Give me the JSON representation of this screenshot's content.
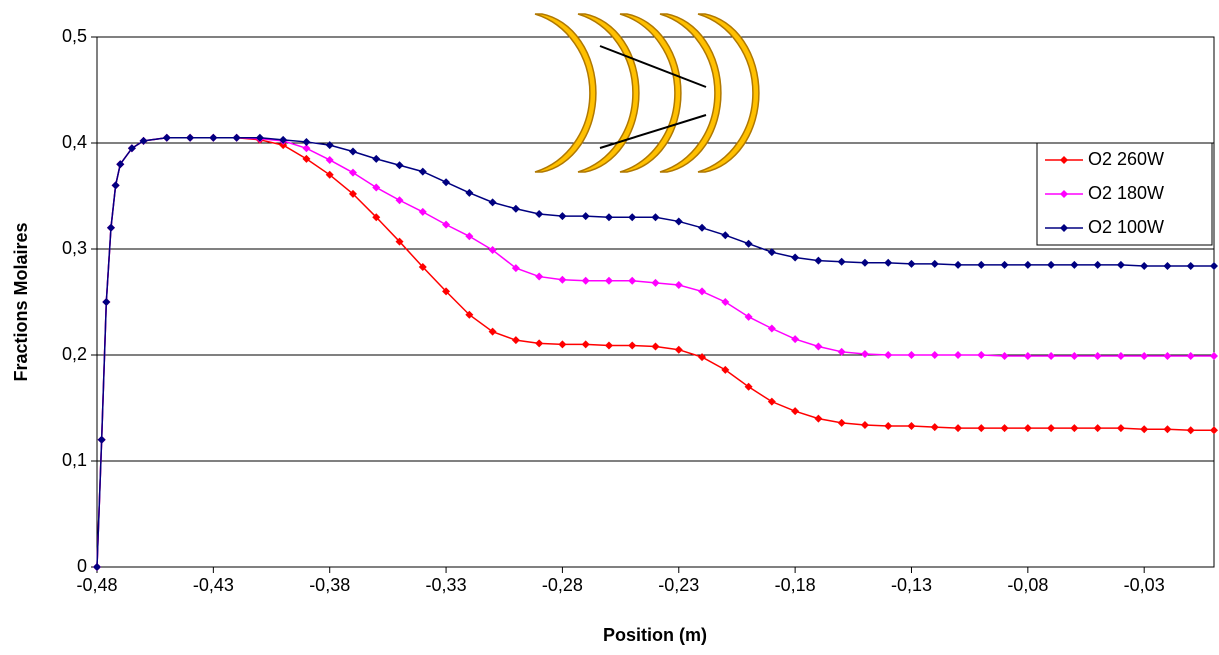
{
  "chart_data": {
    "type": "line",
    "xlabel": "Position (m)",
    "ylabel": "Fractions Molaires",
    "x": [
      -0.48,
      -0.478,
      -0.476,
      -0.474,
      -0.472,
      -0.47,
      -0.465,
      -0.46,
      -0.45,
      -0.44,
      -0.43,
      -0.42,
      -0.41,
      -0.4,
      -0.39,
      -0.38,
      -0.37,
      -0.36,
      -0.35,
      -0.34,
      -0.33,
      -0.32,
      -0.31,
      -0.3,
      -0.29,
      -0.28,
      -0.27,
      -0.26,
      -0.25,
      -0.24,
      -0.23,
      -0.22,
      -0.21,
      -0.2,
      -0.19,
      -0.18,
      -0.17,
      -0.16,
      -0.15,
      -0.14,
      -0.13,
      -0.12,
      -0.11,
      -0.1,
      -0.09,
      -0.08,
      -0.07,
      -0.06,
      -0.05,
      -0.04,
      -0.03,
      -0.02,
      -0.01,
      0
    ],
    "series": [
      {
        "name": "O2 260W",
        "color": "#ff0000",
        "values": [
          0,
          0.12,
          0.25,
          0.32,
          0.36,
          0.38,
          0.395,
          0.402,
          0.405,
          0.405,
          0.405,
          0.405,
          0.403,
          0.398,
          0.385,
          0.37,
          0.352,
          0.33,
          0.307,
          0.283,
          0.26,
          0.238,
          0.222,
          0.214,
          0.211,
          0.21,
          0.21,
          0.209,
          0.209,
          0.208,
          0.205,
          0.198,
          0.186,
          0.17,
          0.156,
          0.147,
          0.14,
          0.136,
          0.134,
          0.133,
          0.133,
          0.132,
          0.131,
          0.131,
          0.131,
          0.131,
          0.131,
          0.131,
          0.131,
          0.131,
          0.13,
          0.13,
          0.129,
          0.129
        ]
      },
      {
        "name": "O2 180W",
        "color": "#ff00ff",
        "values": [
          0,
          0.12,
          0.25,
          0.32,
          0.36,
          0.38,
          0.395,
          0.402,
          0.405,
          0.405,
          0.405,
          0.405,
          0.404,
          0.402,
          0.395,
          0.384,
          0.372,
          0.358,
          0.346,
          0.335,
          0.323,
          0.312,
          0.299,
          0.282,
          0.274,
          0.271,
          0.27,
          0.27,
          0.27,
          0.268,
          0.266,
          0.26,
          0.25,
          0.236,
          0.225,
          0.215,
          0.208,
          0.203,
          0.201,
          0.2,
          0.2,
          0.2,
          0.2,
          0.2,
          0.199,
          0.199,
          0.199,
          0.199,
          0.199,
          0.199,
          0.199,
          0.199,
          0.199,
          0.199
        ]
      },
      {
        "name": "O2 100W",
        "color": "#000080",
        "values": [
          0,
          0.12,
          0.25,
          0.32,
          0.36,
          0.38,
          0.395,
          0.402,
          0.405,
          0.405,
          0.405,
          0.405,
          0.405,
          0.403,
          0.401,
          0.398,
          0.392,
          0.385,
          0.379,
          0.373,
          0.363,
          0.353,
          0.344,
          0.338,
          0.333,
          0.331,
          0.331,
          0.33,
          0.33,
          0.33,
          0.326,
          0.32,
          0.313,
          0.305,
          0.297,
          0.292,
          0.289,
          0.288,
          0.287,
          0.287,
          0.286,
          0.286,
          0.285,
          0.285,
          0.285,
          0.285,
          0.285,
          0.285,
          0.285,
          0.285,
          0.284,
          0.284,
          0.284,
          0.284
        ]
      }
    ],
    "xlim": [
      -0.48,
      0
    ],
    "xticks": [
      {
        "value": -0.48,
        "label": "-0,48"
      },
      {
        "value": -0.43,
        "label": "-0,43"
      },
      {
        "value": -0.38,
        "label": "-0,38"
      },
      {
        "value": -0.33,
        "label": "-0,33"
      },
      {
        "value": -0.28,
        "label": "-0,28"
      },
      {
        "value": -0.23,
        "label": "-0,23"
      },
      {
        "value": -0.18,
        "label": "-0,18"
      },
      {
        "value": -0.13,
        "label": "-0,13"
      },
      {
        "value": -0.08,
        "label": "-0,08"
      },
      {
        "value": -0.03,
        "label": "-0,03"
      }
    ],
    "ylim": [
      0,
      0.5
    ],
    "yticks": [
      0,
      {
        "value": 0.1,
        "label": "0,1"
      },
      {
        "value": 0.2,
        "label": "0,2"
      },
      {
        "value": 0.3,
        "label": "0,3"
      },
      {
        "value": 0.4,
        "label": "0,4"
      },
      {
        "value": 0.5,
        "label": "0,5"
      }
    ],
    "grid": true,
    "legend": "right"
  }
}
